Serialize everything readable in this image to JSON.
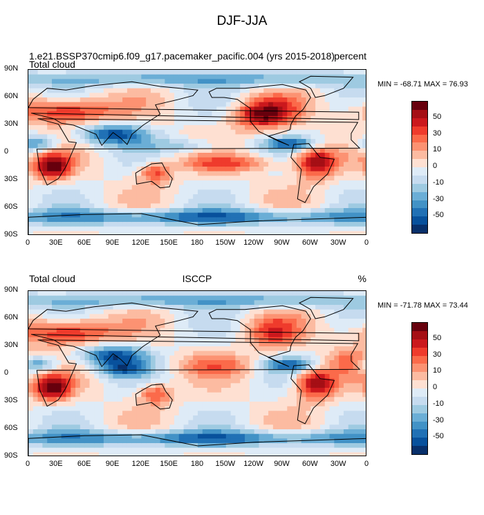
{
  "title": "DJF-JJA",
  "panels": [
    {
      "case_label": "1.e21.BSSP370cmip6.f09_g17.pacemaker_pacific.004 (yrs 2015-2018)",
      "left_label": "Total cloud",
      "center_label": "",
      "right_label": "percent",
      "minmax": "MIN = -68.71 MAX =  76.93",
      "pattern": "model"
    },
    {
      "case_label": "",
      "left_label": "Total cloud",
      "center_label": "ISCCP",
      "right_label": "%",
      "minmax": "MIN = -71.78 MAX =  73.44",
      "pattern": "obs"
    }
  ],
  "lat_ticks": [
    "90N",
    "60N",
    "30N",
    "0",
    "30S",
    "60S",
    "90S"
  ],
  "lon_ticks": [
    "0",
    "30E",
    "60E",
    "90E",
    "120E",
    "150E",
    "180",
    "150W",
    "120W",
    "90W",
    "60W",
    "30W",
    "0"
  ],
  "colorbar": {
    "labels": [
      "50",
      "30",
      "10",
      "0",
      "-10",
      "-30",
      "-50"
    ],
    "colors": [
      "#67000d",
      "#a50f15",
      "#cb181d",
      "#ef3b2c",
      "#fb6a4a",
      "#fc9272",
      "#fcbba1",
      "#fee0d2",
      "#deebf7",
      "#c6dbef",
      "#9ecae1",
      "#6baed6",
      "#4292c6",
      "#2171b5",
      "#08519c",
      "#08306b"
    ]
  }
}
